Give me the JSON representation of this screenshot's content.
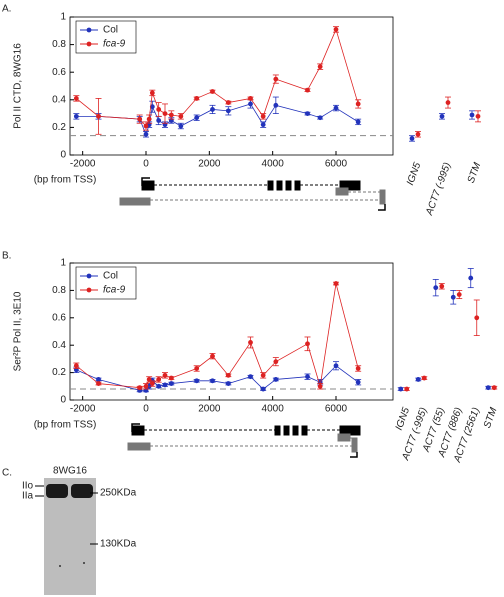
{
  "figure": {
    "panel_labels": [
      "A.",
      "B.",
      "C."
    ],
    "blot": {
      "antibody": "8WG16",
      "bands": [
        "IIo",
        "IIa"
      ],
      "markers": [
        "250KDa",
        "130KDa"
      ]
    }
  },
  "chart_data": [
    {
      "type": "line",
      "ylabel": "Pol II CTD, 8WG16",
      "xlabel": "(bp from TSS)",
      "legend": "upper left",
      "xlim": [
        -2400,
        7800
      ],
      "ylim": [
        0,
        1
      ],
      "xticks": [
        -2000,
        0,
        2000,
        4000,
        6000
      ],
      "yticks": [
        0,
        0.2,
        0.4,
        0.6,
        0.8,
        1
      ],
      "baseline": 0.14,
      "x": [
        -2200,
        -1500,
        -200,
        0,
        100,
        200,
        400,
        600,
        800,
        1100,
        1600,
        2100,
        2600,
        3300,
        3700,
        4100,
        5100,
        5500,
        6000,
        6700
      ],
      "series": [
        {
          "name": "Col",
          "color": "#2233bb",
          "values": [
            0.28,
            0.28,
            0.26,
            0.15,
            0.22,
            0.35,
            0.25,
            0.22,
            0.25,
            0.21,
            0.27,
            0.33,
            0.32,
            0.37,
            0.22,
            0.36,
            0.3,
            0.27,
            0.34,
            0.24
          ],
          "errors": [
            0.02,
            0.02,
            0.02,
            0.02,
            0.02,
            0.04,
            0.03,
            0.02,
            0.02,
            0.02,
            0.02,
            0.03,
            0.03,
            0.03,
            0.02,
            0.06,
            0.01,
            0.01,
            0.02,
            0.02
          ]
        },
        {
          "name": "fca-9",
          "color": "#dd2222",
          "values": [
            0.41,
            0.28,
            0.26,
            0.21,
            0.26,
            0.45,
            0.33,
            0.3,
            0.29,
            0.28,
            0.41,
            0.46,
            0.38,
            0.41,
            0.28,
            0.55,
            0.47,
            0.64,
            0.91,
            0.37
          ],
          "errors": [
            0.02,
            0.13,
            0.03,
            0.03,
            0.03,
            0.02,
            0.05,
            0.07,
            0.03,
            0.02,
            0.01,
            0.01,
            0.01,
            0.01,
            0.02,
            0.03,
            0.01,
            0.02,
            0.02,
            0.03
          ]
        }
      ]
    },
    {
      "type": "dot",
      "ylim": [
        0,
        1
      ],
      "categories": [
        "IGN5",
        "ACT7 (-995)",
        "STM"
      ],
      "series": [
        {
          "color": "#2233bb",
          "values": [
            0.12,
            0.28,
            0.29
          ],
          "errors": [
            0.02,
            0.02,
            0.03
          ]
        },
        {
          "color": "#dd2222",
          "values": [
            0.15,
            0.38,
            0.28
          ],
          "errors": [
            0.02,
            0.04,
            0.04
          ]
        }
      ]
    },
    {
      "type": "line",
      "ylabel": "Ser²P  Pol II, 3E10",
      "xlabel": "(bp from TSS)",
      "legend": "upper left",
      "xlim": [
        -2400,
        7800
      ],
      "ylim": [
        0,
        1
      ],
      "xticks": [
        -2000,
        0,
        2000,
        4000,
        6000
      ],
      "yticks": [
        0,
        0.2,
        0.4,
        0.6,
        0.8,
        1
      ],
      "baseline": 0.08,
      "x": [
        -2200,
        -1500,
        -200,
        0,
        100,
        200,
        400,
        600,
        800,
        1600,
        2100,
        2600,
        3300,
        3700,
        4100,
        5100,
        5500,
        6000,
        6700
      ],
      "series": [
        {
          "name": "Col",
          "color": "#2233bb",
          "values": [
            0.22,
            0.15,
            0.07,
            0.07,
            0.1,
            0.14,
            0.1,
            0.11,
            0.12,
            0.14,
            0.14,
            0.12,
            0.17,
            0.08,
            0.15,
            0.17,
            0.13,
            0.25,
            0.13
          ],
          "errors": [
            0.02,
            0.01,
            0.01,
            0.01,
            0.02,
            0.02,
            0.01,
            0.01,
            0.01,
            0.01,
            0.01,
            0.01,
            0.01,
            0.01,
            0.01,
            0.02,
            0.02,
            0.03,
            0.02
          ]
        },
        {
          "name": "fca-9",
          "color": "#dd2222",
          "values": [
            0.25,
            0.12,
            0.09,
            0.1,
            0.15,
            0.12,
            0.15,
            0.18,
            0.16,
            0.23,
            0.32,
            0.18,
            0.42,
            0.18,
            0.28,
            0.41,
            0.1,
            0.85,
            0.23
          ],
          "errors": [
            0.02,
            0.01,
            0.01,
            0.02,
            0.02,
            0.02,
            0.02,
            0.02,
            0.01,
            0.02,
            0.02,
            0.01,
            0.04,
            0.02,
            0.03,
            0.05,
            0.02,
            0.01,
            0.02
          ]
        }
      ]
    },
    {
      "type": "dot",
      "ylim": [
        0,
        1
      ],
      "categories": [
        "IGN5",
        "ACT7 (-995)",
        "ACT7 (55)",
        "ACT7 (886)",
        "ACT7 (2561)",
        "STM"
      ],
      "series": [
        {
          "color": "#2233bb",
          "values": [
            0.08,
            0.15,
            0.82,
            0.75,
            0.89,
            0.09
          ],
          "errors": [
            0.01,
            0.01,
            0.06,
            0.05,
            0.07,
            0.01
          ]
        },
        {
          "color": "#dd2222",
          "values": [
            0.08,
            0.16,
            0.83,
            0.77,
            0.6,
            0.09
          ],
          "errors": [
            0.01,
            0.01,
            0.02,
            0.03,
            0.13,
            0.01
          ]
        }
      ]
    }
  ]
}
